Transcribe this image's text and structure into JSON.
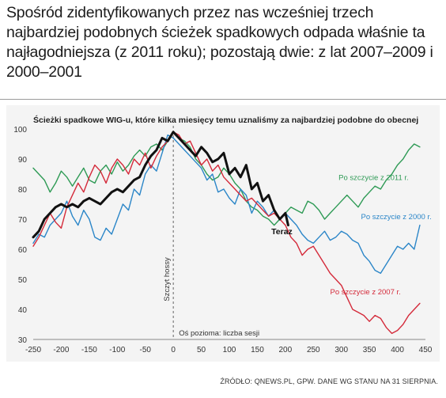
{
  "headline": "Spośród zidentyfikowanych przez nas wcześniej trzech najbardziej podobnych ścieżek spadkowych odpada właśnie ta najłagodniejsza (z 2011 roku); pozostają dwie: z lat 2007–2009 i 2000–2001",
  "source": "ŹRÓDŁO: QNEWS.PL, GPW. DANE WG STANU NA 31 SIERPNIA.",
  "colors": {
    "black": "#111111",
    "green": "#2e9a55",
    "blue": "#2b86c8",
    "red": "#d42a3a",
    "label_green": "#2e9a55",
    "label_blue": "#2b86c8",
    "label_red": "#d42a3a"
  },
  "chart_data": {
    "type": "line",
    "title": "Ścieżki spadkowe WIG-u, które kilka miesięcy temu uznaliśmy za najbardziej podobne do obecnej",
    "xlabel": "Oś pozioma: liczba sesji",
    "ylabel": "",
    "xlim": [
      -250,
      450
    ],
    "ylim": [
      30,
      100
    ],
    "x_ticks": [
      "-250",
      "-200",
      "-150",
      "-100",
      "-50",
      "0",
      "50",
      "100",
      "150",
      "200",
      "250",
      "300",
      "350",
      "400",
      "450"
    ],
    "y_ticks": [
      "30",
      "40",
      "50",
      "60",
      "70",
      "80",
      "90",
      "100"
    ],
    "vline": {
      "x": 0,
      "label": "Szczyt hossy"
    },
    "series": [
      {
        "name": "Teraz",
        "color_key": "black",
        "x": [
          -250,
          -240,
          -230,
          -220,
          -210,
          -200,
          -190,
          -180,
          -170,
          -160,
          -150,
          -140,
          -130,
          -120,
          -110,
          -100,
          -90,
          -80,
          -70,
          -60,
          -50,
          -40,
          -30,
          -20,
          -10,
          0,
          10,
          20,
          30,
          40,
          50,
          60,
          70,
          80,
          90,
          100,
          110,
          120,
          130,
          140,
          150,
          160,
          170,
          180,
          190,
          200,
          205
        ],
        "y": [
          64,
          66,
          70,
          72,
          74,
          75,
          74,
          75,
          74,
          76,
          77,
          76,
          75,
          77,
          79,
          80,
          79,
          81,
          83,
          84,
          88,
          91,
          93,
          97,
          96,
          99,
          97,
          95,
          93,
          91,
          94,
          92,
          89,
          90,
          92,
          85,
          87,
          84,
          88,
          80,
          82,
          76,
          78,
          73,
          70,
          72,
          68
        ]
      },
      {
        "name": "Po szczycie z 2011 r.",
        "color_key": "green",
        "x": [
          -250,
          -240,
          -230,
          -220,
          -210,
          -200,
          -190,
          -180,
          -170,
          -160,
          -150,
          -140,
          -130,
          -120,
          -110,
          -100,
          -90,
          -80,
          -70,
          -60,
          -50,
          -40,
          -30,
          -20,
          -10,
          0,
          10,
          20,
          30,
          40,
          50,
          60,
          70,
          80,
          90,
          100,
          110,
          120,
          130,
          140,
          150,
          160,
          170,
          180,
          190,
          200,
          210,
          220,
          230,
          240,
          250,
          260,
          270,
          280,
          290,
          300,
          310,
          320,
          330,
          340,
          350,
          360,
          370,
          380,
          390,
          400,
          410,
          420,
          430,
          440
        ],
        "y": [
          87,
          85,
          83,
          79,
          82,
          86,
          84,
          81,
          84,
          87,
          83,
          82,
          86,
          88,
          85,
          89,
          86,
          88,
          91,
          93,
          91,
          94,
          95,
          93,
          96,
          99,
          97,
          96,
          94,
          90,
          88,
          85,
          83,
          84,
          87,
          85,
          82,
          80,
          76,
          74,
          73,
          71,
          70,
          68,
          70,
          72,
          74,
          73,
          72,
          76,
          75,
          73,
          70,
          72,
          74,
          76,
          78,
          76,
          74,
          77,
          79,
          81,
          80,
          83,
          85,
          88,
          90,
          93,
          95,
          94
        ]
      },
      {
        "name": "Po szczycie z 2000 r.",
        "color_key": "blue",
        "x": [
          -250,
          -240,
          -230,
          -220,
          -210,
          -200,
          -190,
          -180,
          -170,
          -160,
          -150,
          -140,
          -130,
          -120,
          -110,
          -100,
          -90,
          -80,
          -70,
          -60,
          -50,
          -40,
          -30,
          -20,
          -10,
          0,
          10,
          20,
          30,
          40,
          50,
          60,
          70,
          80,
          90,
          100,
          110,
          120,
          130,
          140,
          150,
          160,
          170,
          180,
          190,
          200,
          210,
          220,
          230,
          240,
          250,
          260,
          270,
          280,
          290,
          300,
          310,
          320,
          330,
          340,
          350,
          360,
          370,
          380,
          390,
          400,
          410,
          420,
          430,
          440
        ],
        "y": [
          62,
          65,
          64,
          68,
          70,
          72,
          76,
          71,
          68,
          73,
          70,
          64,
          63,
          67,
          65,
          70,
          75,
          73,
          80,
          78,
          85,
          88,
          86,
          92,
          98,
          97,
          95,
          93,
          91,
          89,
          87,
          83,
          85,
          79,
          80,
          77,
          75,
          80,
          78,
          72,
          76,
          74,
          71,
          73,
          70,
          72,
          70,
          68,
          65,
          63,
          62,
          64,
          66,
          63,
          64,
          66,
          65,
          63,
          62,
          58,
          56,
          53,
          52,
          55,
          58,
          61,
          60,
          62,
          60,
          68
        ]
      },
      {
        "name": "Po szczycie z 2007 r.",
        "color_key": "red",
        "x": [
          -250,
          -240,
          -230,
          -220,
          -210,
          -200,
          -190,
          -180,
          -170,
          -160,
          -150,
          -140,
          -130,
          -120,
          -110,
          -100,
          -90,
          -80,
          -70,
          -60,
          -50,
          -40,
          -30,
          -20,
          -10,
          0,
          10,
          20,
          30,
          40,
          50,
          60,
          70,
          80,
          90,
          100,
          110,
          120,
          130,
          140,
          150,
          160,
          170,
          180,
          190,
          200,
          210,
          220,
          230,
          240,
          250,
          260,
          270,
          280,
          290,
          300,
          310,
          320,
          330,
          340,
          350,
          360,
          370,
          380,
          390,
          400,
          410,
          420,
          430,
          440
        ],
        "y": [
          61,
          64,
          68,
          72,
          69,
          67,
          74,
          78,
          82,
          79,
          84,
          88,
          86,
          82,
          87,
          90,
          88,
          85,
          90,
          88,
          92,
          87,
          91,
          94,
          96,
          99,
          98,
          95,
          96,
          92,
          88,
          90,
          86,
          88,
          84,
          82,
          80,
          78,
          76,
          77,
          75,
          73,
          71,
          72,
          70,
          68,
          64,
          62,
          58,
          60,
          61,
          58,
          55,
          52,
          50,
          48,
          44,
          40,
          39,
          38,
          36,
          38,
          37,
          34,
          32,
          33,
          35,
          38,
          40,
          42
        ]
      }
    ],
    "annotations": [
      {
        "text": "Po szczycie z 2011 r.",
        "color_key": "label_green",
        "x": 295,
        "y": 83,
        "bold": false
      },
      {
        "text": "Po szczycie z 2000 r.",
        "color_key": "label_blue",
        "x": 335,
        "y": 70,
        "bold": false
      },
      {
        "text": "Po szczycie z 2007 r.",
        "color_key": "label_red",
        "x": 280,
        "y": 45,
        "bold": false
      },
      {
        "text": "Teraz",
        "color_key": "black",
        "x": 175,
        "y": 65,
        "bold": true
      }
    ]
  }
}
